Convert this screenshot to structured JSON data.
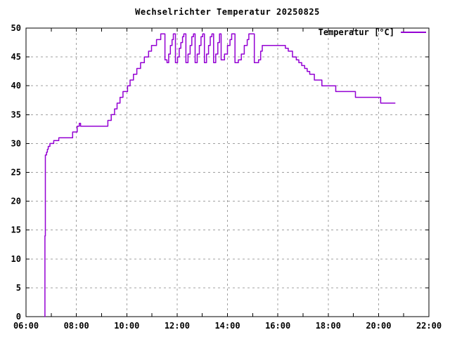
{
  "window": {
    "title": "Wechselrichter Temperatur 20250825"
  },
  "chart_data": {
    "type": "line",
    "title": "Wechselrichter Temperatur 20250825",
    "xlabel": "",
    "ylabel": "",
    "legend": {
      "label": "Temperatur [°C]",
      "position": "top-right"
    },
    "grid": {
      "visible": true,
      "style": "dashed",
      "color": "#a0a0a0"
    },
    "colors": {
      "background": "#ffffff",
      "border": "#000000",
      "text": "#000000",
      "line": "#9400d3"
    },
    "x_axis": {
      "unit": "time",
      "min_hours": 6,
      "max_hours": 22,
      "major_tick_hours": [
        6,
        8,
        10,
        12,
        14,
        16,
        18,
        20,
        22
      ],
      "major_tick_labels": [
        "06:00",
        "08:00",
        "10:00",
        "12:00",
        "14:00",
        "16:00",
        "18:00",
        "20:00",
        "22:00"
      ],
      "minor_tick_hours": [
        7,
        9,
        11,
        13,
        15,
        17,
        19,
        21
      ]
    },
    "y_axis": {
      "min": 0,
      "max": 50,
      "major_ticks": [
        0,
        5,
        10,
        15,
        20,
        25,
        30,
        35,
        40,
        45,
        50
      ]
    },
    "series": [
      {
        "name": "Temperatur [°C]",
        "color": "#9400d3",
        "style": "steps",
        "points": [
          [
            "06:44",
            0
          ],
          [
            "06:45",
            14
          ],
          [
            "06:46",
            28
          ],
          [
            "06:49",
            28.5
          ],
          [
            "06:51",
            29
          ],
          [
            "06:53",
            29.5
          ],
          [
            "06:57",
            30
          ],
          [
            "07:06",
            30.5
          ],
          [
            "07:18",
            31
          ],
          [
            "07:51",
            32
          ],
          [
            "08:02",
            33
          ],
          [
            "08:07",
            33.5
          ],
          [
            "08:10",
            33
          ],
          [
            "09:15",
            34
          ],
          [
            "09:23",
            35
          ],
          [
            "09:31",
            36
          ],
          [
            "09:37",
            37
          ],
          [
            "09:44",
            38
          ],
          [
            "09:51",
            39
          ],
          [
            "10:02",
            40
          ],
          [
            "10:08",
            41
          ],
          [
            "10:16",
            42
          ],
          [
            "10:24",
            43
          ],
          [
            "10:33",
            44
          ],
          [
            "10:42",
            45
          ],
          [
            "10:52",
            46
          ],
          [
            "10:59",
            47
          ],
          [
            "11:11",
            48
          ],
          [
            "11:21",
            49
          ],
          [
            "11:31",
            44.5
          ],
          [
            "11:36",
            44
          ],
          [
            "11:40",
            45.5
          ],
          [
            "11:44",
            47
          ],
          [
            "11:48",
            48
          ],
          [
            "11:51",
            49
          ],
          [
            "11:56",
            44
          ],
          [
            "12:01",
            45
          ],
          [
            "12:05",
            46.5
          ],
          [
            "12:09",
            47.5
          ],
          [
            "12:13",
            48.5
          ],
          [
            "12:16",
            49
          ],
          [
            "12:21",
            44
          ],
          [
            "12:26",
            45.5
          ],
          [
            "12:31",
            47
          ],
          [
            "12:35",
            48.5
          ],
          [
            "12:39",
            49
          ],
          [
            "12:43",
            44
          ],
          [
            "12:48",
            45.5
          ],
          [
            "12:53",
            47
          ],
          [
            "12:57",
            48.5
          ],
          [
            "13:01",
            49
          ],
          [
            "13:05",
            44
          ],
          [
            "13:10",
            45.5
          ],
          [
            "13:15",
            47
          ],
          [
            "13:19",
            48.5
          ],
          [
            "13:23",
            49
          ],
          [
            "13:27",
            44
          ],
          [
            "13:32",
            45.5
          ],
          [
            "13:37",
            47.5
          ],
          [
            "13:41",
            49
          ],
          [
            "13:45",
            44.5
          ],
          [
            "13:53",
            45.5
          ],
          [
            "14:00",
            47
          ],
          [
            "14:06",
            48
          ],
          [
            "14:10",
            49
          ],
          [
            "14:15",
            49
          ],
          [
            "14:18",
            44
          ],
          [
            "14:26",
            44.5
          ],
          [
            "14:33",
            45.5
          ],
          [
            "14:40",
            47
          ],
          [
            "14:47",
            48
          ],
          [
            "14:51",
            49
          ],
          [
            "14:58",
            49
          ],
          [
            "15:04",
            44
          ],
          [
            "15:14",
            44.5
          ],
          [
            "15:19",
            46
          ],
          [
            "15:23",
            47
          ],
          [
            "16:18",
            46.5
          ],
          [
            "16:25",
            46
          ],
          [
            "16:35",
            45
          ],
          [
            "16:44",
            44.5
          ],
          [
            "16:50",
            44
          ],
          [
            "16:57",
            43.5
          ],
          [
            "17:04",
            43
          ],
          [
            "17:10",
            42.5
          ],
          [
            "17:16",
            42
          ],
          [
            "17:27",
            41
          ],
          [
            "17:45",
            40
          ],
          [
            "18:18",
            39
          ],
          [
            "19:05",
            38
          ],
          [
            "20:05",
            37
          ],
          [
            "20:40",
            37
          ]
        ]
      }
    ]
  }
}
